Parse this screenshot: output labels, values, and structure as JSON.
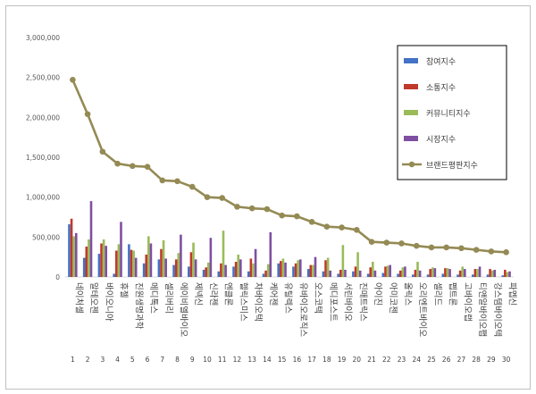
{
  "chart_data": {
    "type": "bar",
    "title": "",
    "xlabel": "",
    "ylabel": "",
    "ylim": [
      0,
      3000000
    ],
    "yticks": [
      "0",
      "500,000",
      "1,000,000",
      "1,500,000",
      "2,000,000",
      "2,500,000",
      "3,000,000"
    ],
    "grid": false,
    "legend_position": "right",
    "ranks": [
      "1",
      "2",
      "3",
      "4",
      "5",
      "6",
      "7",
      "8",
      "9",
      "10",
      "11",
      "12",
      "13",
      "14",
      "15",
      "16",
      "17",
      "18",
      "19",
      "20",
      "21",
      "22",
      "23",
      "24",
      "25",
      "26",
      "27",
      "28",
      "29",
      "30"
    ],
    "categories": [
      "네이처셀",
      "알테오젠",
      "바이오니아",
      "휴젤",
      "진원생명과학",
      "메디톡스",
      "셀리버리",
      "에이비엘바이오",
      "제넥신",
      "신라젠",
      "엔클론",
      "헬릭스미스",
      "차바이오텍",
      "케어젠",
      "유틸렉스",
      "유바이오로직스",
      "오스코텍",
      "메디포스트",
      "서린바이오",
      "진매트릭스",
      "아이진",
      "아미코젠",
      "올릭스",
      "오리엔트바이오",
      "셀리드",
      "펩트론",
      "고바이오랩",
      "티앤알바이오팹",
      "강스템바이오텍",
      "파멥신"
    ],
    "series": [
      {
        "name": "참여지수",
        "color": "#4472c4",
        "kind": "bar",
        "values": [
          660000,
          240000,
          290000,
          40000,
          410000,
          170000,
          220000,
          150000,
          130000,
          90000,
          70000,
          130000,
          70000,
          40000,
          170000,
          130000,
          100000,
          70000,
          40000,
          70000,
          40000,
          50000,
          40000,
          30000,
          30000,
          40000,
          30000,
          30000,
          30000,
          20000
        ]
      },
      {
        "name": "소통지수",
        "color": "#c0392b",
        "kind": "bar",
        "values": [
          730000,
          380000,
          420000,
          330000,
          340000,
          280000,
          350000,
          220000,
          310000,
          120000,
          170000,
          190000,
          230000,
          80000,
          200000,
          170000,
          150000,
          210000,
          90000,
          130000,
          120000,
          130000,
          80000,
          90000,
          100000,
          110000,
          80000,
          100000,
          100000,
          90000
        ]
      },
      {
        "name": "커뮤니티지수",
        "color": "#9bbb59",
        "kind": "bar",
        "values": [
          510000,
          470000,
          470000,
          410000,
          330000,
          510000,
          460000,
          300000,
          430000,
          180000,
          580000,
          280000,
          170000,
          160000,
          230000,
          210000,
          150000,
          240000,
          400000,
          310000,
          190000,
          140000,
          120000,
          190000,
          120000,
          110000,
          130000,
          100000,
          80000,
          60000
        ]
      },
      {
        "name": "시장지수",
        "color": "#7f4fa1",
        "kind": "bar",
        "values": [
          550000,
          950000,
          390000,
          690000,
          240000,
          420000,
          230000,
          530000,
          220000,
          490000,
          150000,
          220000,
          350000,
          560000,
          180000,
          220000,
          250000,
          80000,
          90000,
          80000,
          80000,
          150000,
          130000,
          80000,
          110000,
          100000,
          100000,
          130000,
          90000,
          70000
        ]
      },
      {
        "name": "브랜드평판지수",
        "color": "#948a54",
        "kind": "line",
        "values": [
          2470000,
          2040000,
          1570000,
          1420000,
          1390000,
          1380000,
          1210000,
          1200000,
          1130000,
          1000000,
          990000,
          880000,
          860000,
          850000,
          770000,
          760000,
          690000,
          630000,
          620000,
          590000,
          440000,
          430000,
          420000,
          390000,
          370000,
          370000,
          360000,
          340000,
          320000,
          310000
        ]
      }
    ]
  }
}
